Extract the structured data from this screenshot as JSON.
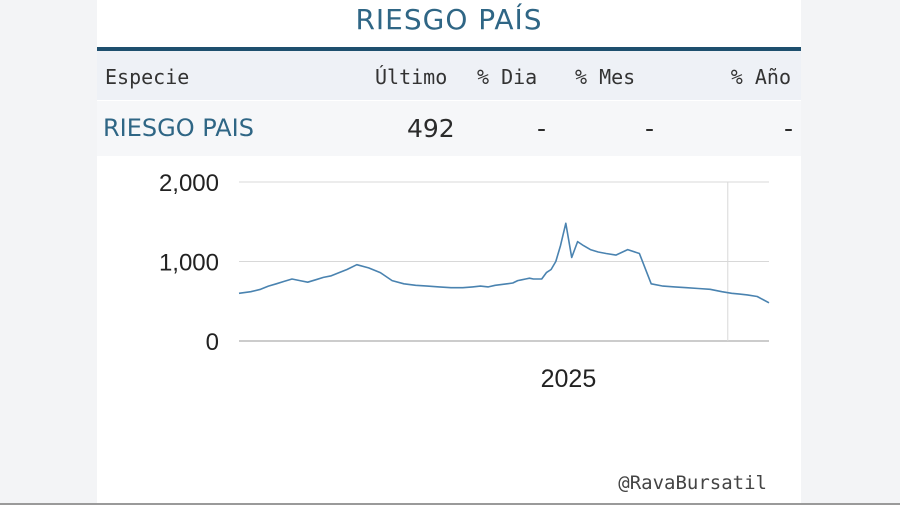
{
  "title": "RIESGO PAÍS",
  "table": {
    "headers": [
      "Especie",
      "Último",
      "% Dia",
      "% Mes",
      "% Año"
    ],
    "row": {
      "especie": "RIESGO PAIS",
      "ultimo": "492",
      "pct_dia": "-",
      "pct_mes": "-",
      "pct_anio": "-"
    }
  },
  "footer": "@RavaBursatil",
  "colors": {
    "title": "#2f6685",
    "title_rule": "#1e4f6e",
    "line": "#4a83b0",
    "header_bg": "#eef1f6"
  },
  "chart_data": {
    "type": "line",
    "title": "",
    "xlabel": "",
    "ylabel": "",
    "ylim": [
      0,
      2000
    ],
    "yticks": [
      "0",
      "1,000",
      "2,000"
    ],
    "xtick_labels": [
      "2025"
    ],
    "x_label_position": "2025",
    "grid": true,
    "series": [
      {
        "name": "",
        "x": [
          "2024-04",
          "2024-04",
          "2024-05",
          "2024-05",
          "2024-05",
          "2024-06",
          "2024-06",
          "2024-06",
          "2024-07",
          "2024-07",
          "2024-07",
          "2024-08",
          "2024-08",
          "2024-08",
          "2024-09",
          "2024-09",
          "2024-10",
          "2024-10",
          "2024-11",
          "2024-11",
          "2024-12",
          "2024-12",
          "2025-01",
          "2025-01",
          "2025-02",
          "2025-02",
          "2025-02",
          "2025-03",
          "2025-03",
          "2025-03",
          "2025-03",
          "2025-04",
          "2025-04",
          "2025-04",
          "2025-04",
          "2025-04",
          "2025-04",
          "2025-05",
          "2025-05",
          "2025-05",
          "2025-05",
          "2025-05",
          "2025-06",
          "2025-06",
          "2025-06",
          "2025-06",
          "2025-07",
          "2025-07",
          "2025-07",
          "2025-08",
          "2025-08",
          "2025-09",
          "2025-09",
          "2025-10",
          "2025-10",
          "2025-11",
          "2025-11",
          "2025-12",
          "2025-12",
          "2026-01",
          "2026-01",
          "2026-01",
          "2026-02",
          "2026-02"
        ],
        "y": [
          600,
          620,
          650,
          690,
          720,
          750,
          780,
          760,
          740,
          770,
          800,
          820,
          860,
          900,
          960,
          920,
          860,
          760,
          720,
          700,
          690,
          680,
          670,
          670,
          680,
          690,
          680,
          700,
          710,
          720,
          730,
          760,
          770,
          780,
          790,
          780,
          780,
          780,
          860,
          900,
          1000,
          1200,
          1480,
          1050,
          1250,
          1200,
          1150,
          1120,
          1100,
          1080,
          1150,
          1100,
          720,
          690,
          680,
          670,
          660,
          650,
          620,
          600,
          590,
          580,
          560,
          480
        ]
      }
    ]
  }
}
